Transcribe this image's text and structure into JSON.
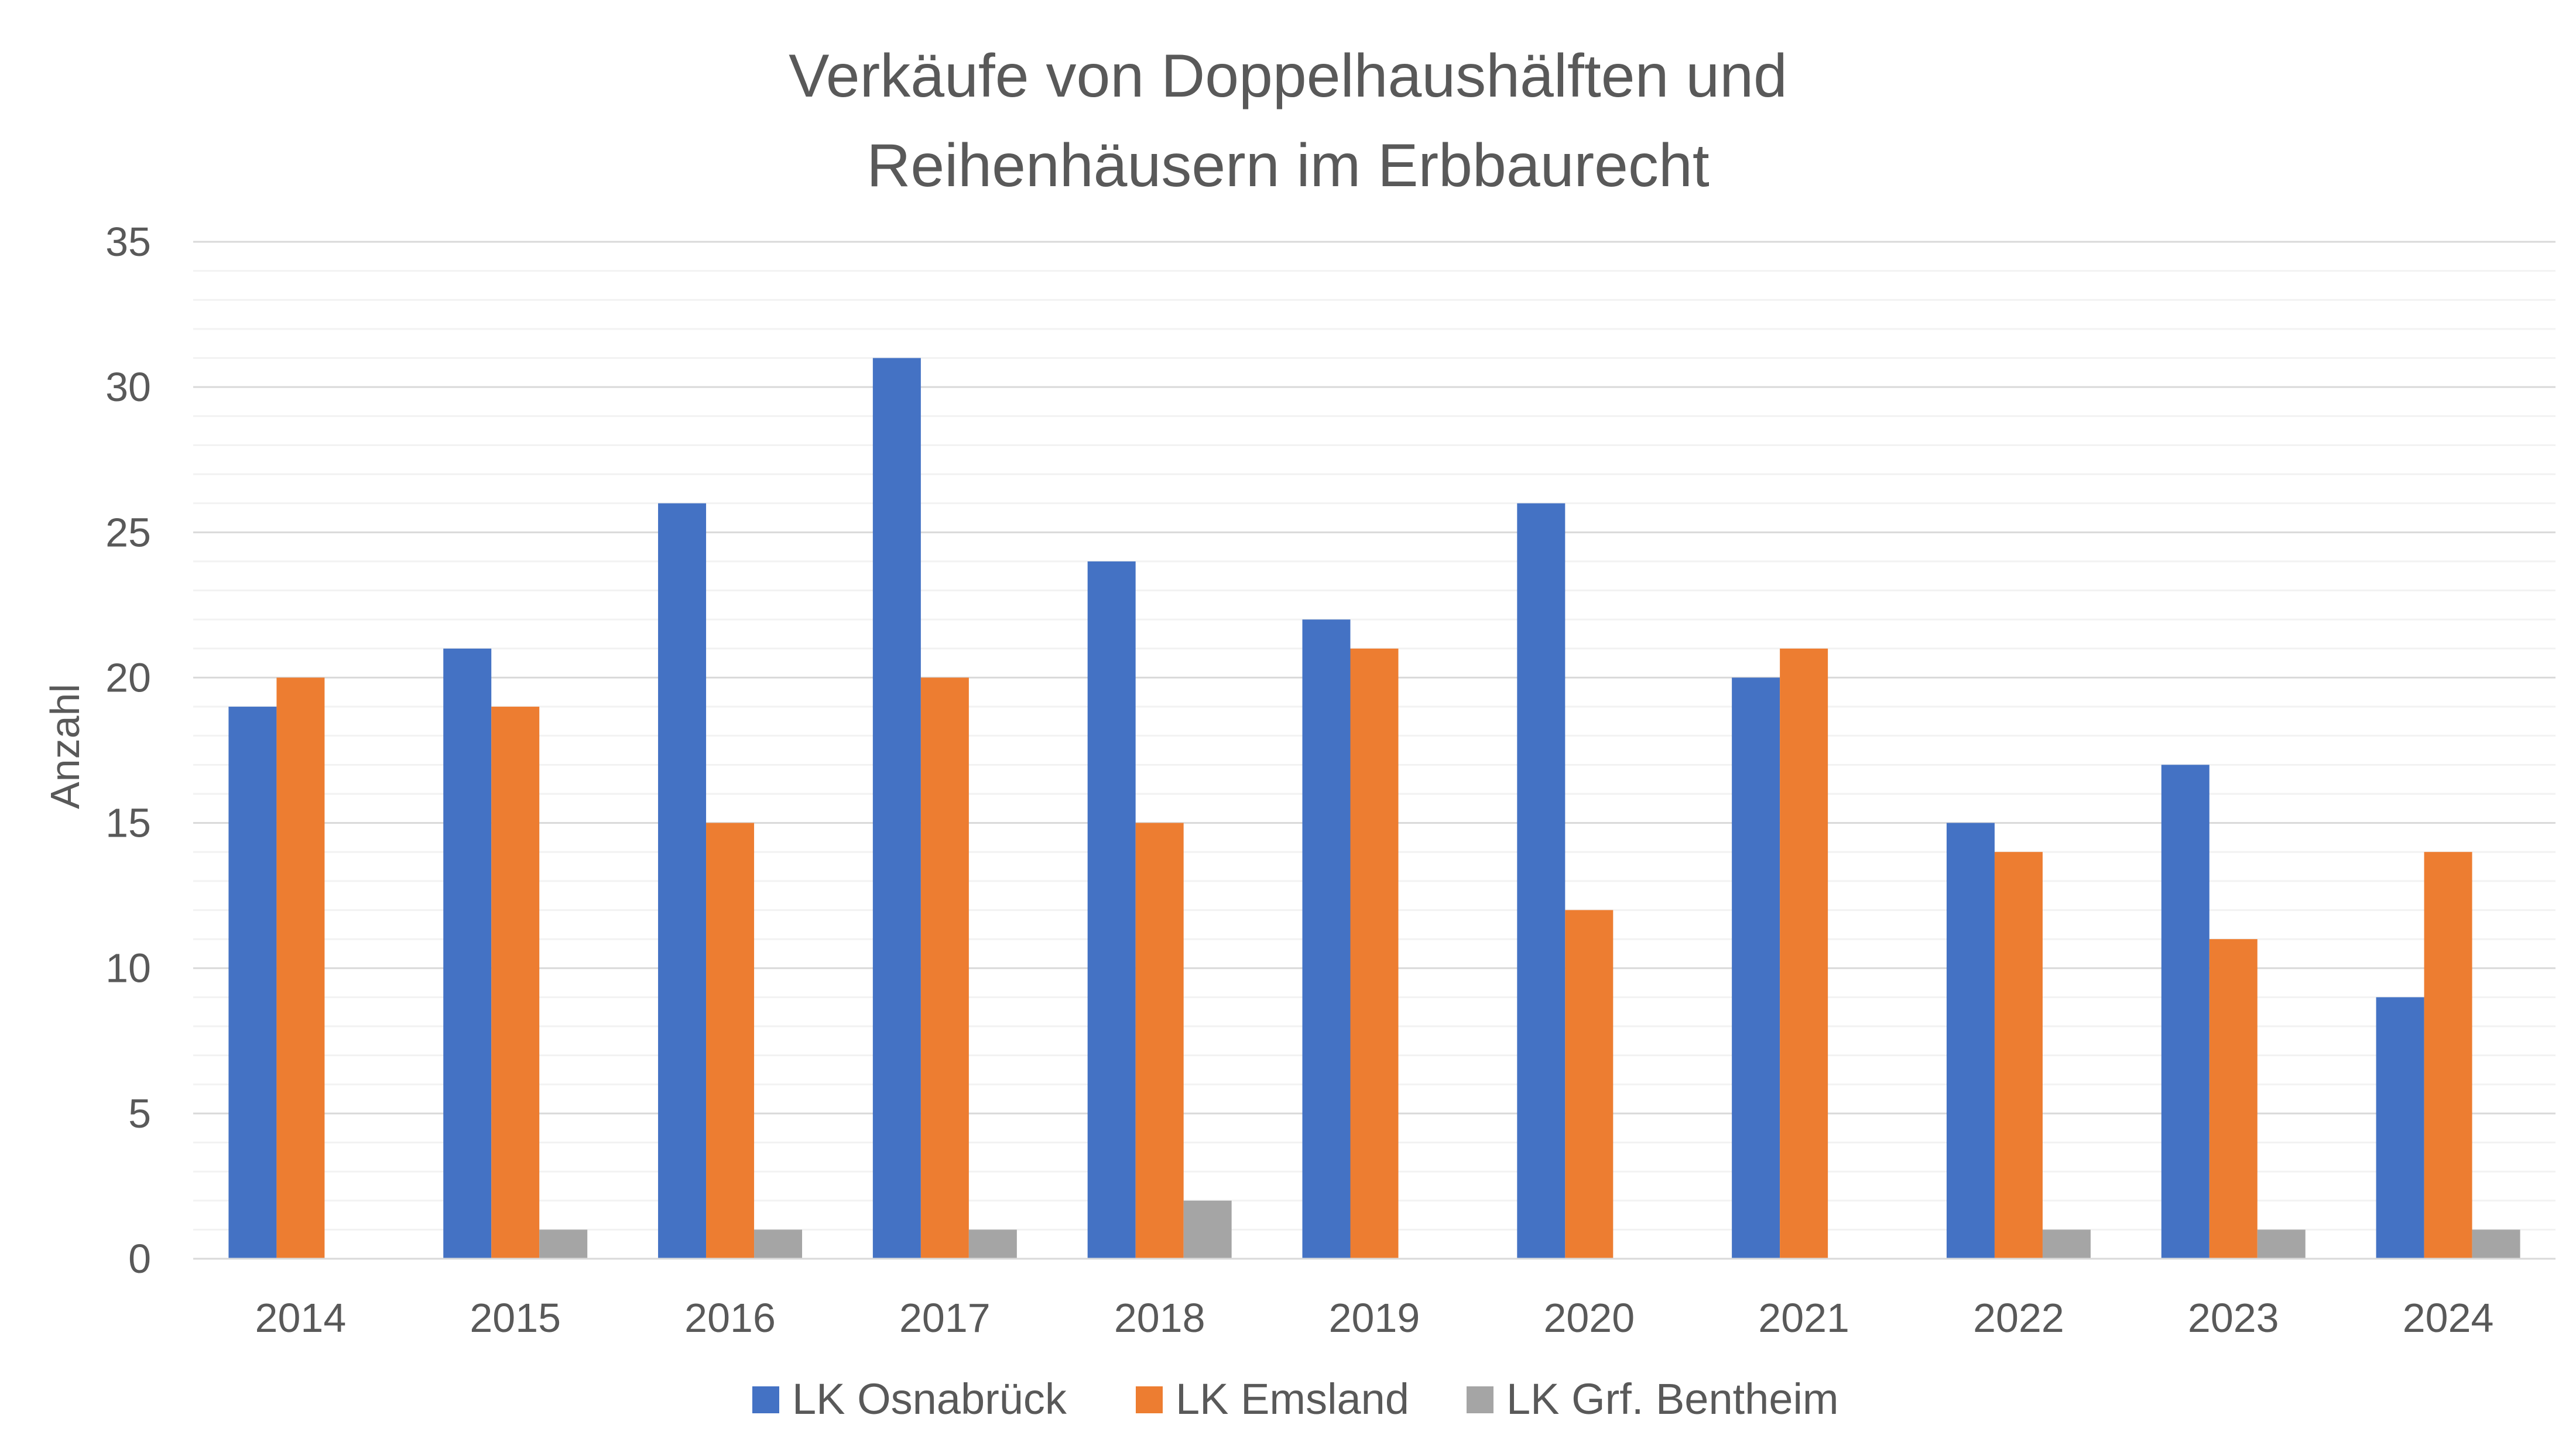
{
  "chart_data": {
    "type": "bar",
    "title_lines": [
      "Verkäufe von Doppelhaushälften und",
      "Reihenhäusern im Erbbaurecht"
    ],
    "xlabel": "",
    "ylabel": "Anzahl",
    "ylim": [
      0,
      35
    ],
    "y_ticks": [
      0,
      5,
      10,
      15,
      20,
      25,
      30,
      35
    ],
    "y_tick_labels": [
      "0",
      "5",
      "10",
      "15",
      "20",
      "25",
      "30",
      "35"
    ],
    "minor_grid_step": 1,
    "grid": true,
    "legend_position": "bottom",
    "categories": [
      "2014",
      "2015",
      "2016",
      "2017",
      "2018",
      "2019",
      "2020",
      "2021",
      "2022",
      "2023",
      "2024"
    ],
    "series": [
      {
        "name": "LK Osnabrück",
        "color": "#4472C4",
        "values": [
          19,
          21,
          26,
          31,
          24,
          22,
          26,
          20,
          15,
          17,
          9
        ]
      },
      {
        "name": "LK Emsland",
        "color": "#ED7D31",
        "values": [
          20,
          19,
          15,
          20,
          15,
          21,
          12,
          21,
          14,
          11,
          14
        ]
      },
      {
        "name": "LK Grf. Bentheim",
        "color": "#A5A5A5",
        "values": [
          0,
          1,
          1,
          1,
          2,
          0,
          0,
          0,
          1,
          1,
          1
        ]
      }
    ]
  }
}
